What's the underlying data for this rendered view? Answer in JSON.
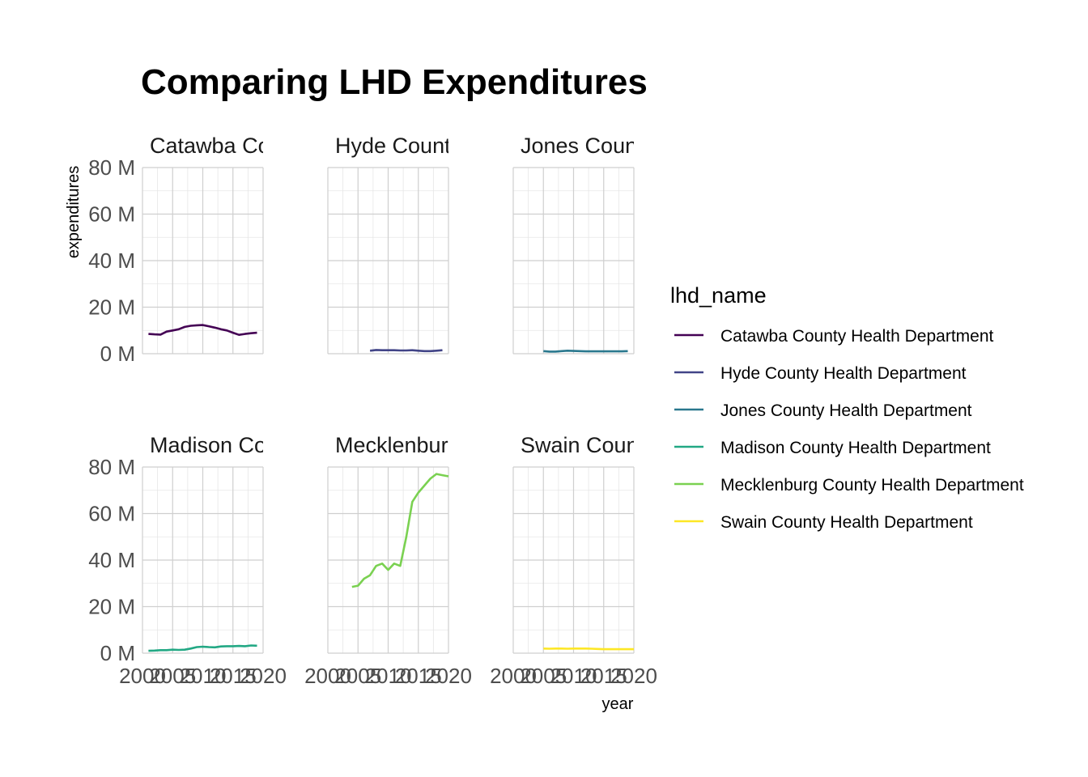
{
  "chart_data": {
    "type": "line",
    "title": "Comparing LHD Expenditures",
    "xlabel": "year",
    "ylabel": "expenditures",
    "xlim": [
      2000,
      2020
    ],
    "ylim": [
      0,
      80000000
    ],
    "x_ticks": [
      2000,
      2005,
      2010,
      2015,
      2020
    ],
    "x_tick_labels": [
      "2000",
      "2005",
      "2010",
      "2015",
      "2020"
    ],
    "y_ticks": [
      0,
      20000000,
      40000000,
      60000000,
      80000000
    ],
    "y_tick_labels": [
      "0 M",
      "20 M",
      "40 M",
      "60 M",
      "80 M"
    ],
    "grid": true,
    "facets": "wrap, 2 rows x 3 columns",
    "legend_title": "lhd_name",
    "legend_position": "right",
    "series": [
      {
        "name": "Catawba County Health Department",
        "strip_label": "Catawba Co",
        "color": "#440154",
        "x": [
          2001,
          2002,
          2003,
          2004,
          2005,
          2006,
          2007,
          2008,
          2009,
          2010,
          2011,
          2012,
          2013,
          2014,
          2015,
          2016,
          2017,
          2018,
          2019
        ],
        "values": [
          8500000,
          8300000,
          8200000,
          9500000,
          10000000,
          10500000,
          11500000,
          12000000,
          12200000,
          12300000,
          11800000,
          11200000,
          10500000,
          10000000,
          9000000,
          8100000,
          8500000,
          8800000,
          9000000
        ]
      },
      {
        "name": "Hyde County Health Department",
        "strip_label": "Hyde Count",
        "color": "#414487",
        "x": [
          2007,
          2008,
          2009,
          2010,
          2011,
          2012,
          2013,
          2014,
          2015,
          2016,
          2017,
          2018,
          2019
        ],
        "values": [
          1300000,
          1600000,
          1500000,
          1500000,
          1500000,
          1400000,
          1400000,
          1500000,
          1300000,
          1100000,
          1100000,
          1300000,
          1500000
        ]
      },
      {
        "name": "Jones County Health Department",
        "strip_label": "Jones Coun",
        "color": "#2a788e",
        "x": [
          2005,
          2006,
          2007,
          2008,
          2009,
          2010,
          2011,
          2012,
          2013,
          2014,
          2015,
          2016,
          2017,
          2018,
          2019
        ],
        "values": [
          1100000,
          900000,
          900000,
          1100000,
          1300000,
          1200000,
          1100000,
          1000000,
          1000000,
          1000000,
          1000000,
          1000000,
          1000000,
          1000000,
          1100000
        ]
      },
      {
        "name": "Madison County Health Department",
        "strip_label": "Madison Co",
        "color": "#22a884",
        "x": [
          2001,
          2002,
          2003,
          2004,
          2005,
          2006,
          2007,
          2008,
          2009,
          2010,
          2011,
          2012,
          2013,
          2014,
          2015,
          2016,
          2017,
          2018,
          2019
        ],
        "values": [
          1000000,
          1100000,
          1300000,
          1300000,
          1500000,
          1400000,
          1500000,
          2000000,
          2600000,
          2800000,
          2600000,
          2500000,
          2900000,
          3000000,
          3000000,
          3100000,
          3000000,
          3300000,
          3200000
        ]
      },
      {
        "name": "Mecklenburg County Health Department",
        "strip_label": "Mecklenburg",
        "color": "#7ad151",
        "x": [
          2004,
          2005,
          2006,
          2007,
          2008,
          2009,
          2010,
          2011,
          2012,
          2013,
          2014,
          2015,
          2016,
          2017,
          2018,
          2019,
          2020
        ],
        "values": [
          28500000,
          29000000,
          32000000,
          33500000,
          37500000,
          38500000,
          35800000,
          38500000,
          37500000,
          50000000,
          65000000,
          69000000,
          72000000,
          75000000,
          77000000,
          76500000,
          76000000
        ]
      },
      {
        "name": "Swain County Health Department",
        "strip_label": "Swain Coun",
        "color": "#fde725",
        "x": [
          2005,
          2006,
          2007,
          2008,
          2009,
          2010,
          2011,
          2012,
          2013,
          2014,
          2015,
          2016,
          2017,
          2018,
          2019,
          2020
        ],
        "values": [
          2000000,
          1900000,
          2000000,
          2000000,
          1900000,
          2000000,
          2000000,
          2000000,
          1900000,
          1800000,
          1700000,
          1700000,
          1700000,
          1700000,
          1700000,
          1700000
        ]
      }
    ]
  }
}
